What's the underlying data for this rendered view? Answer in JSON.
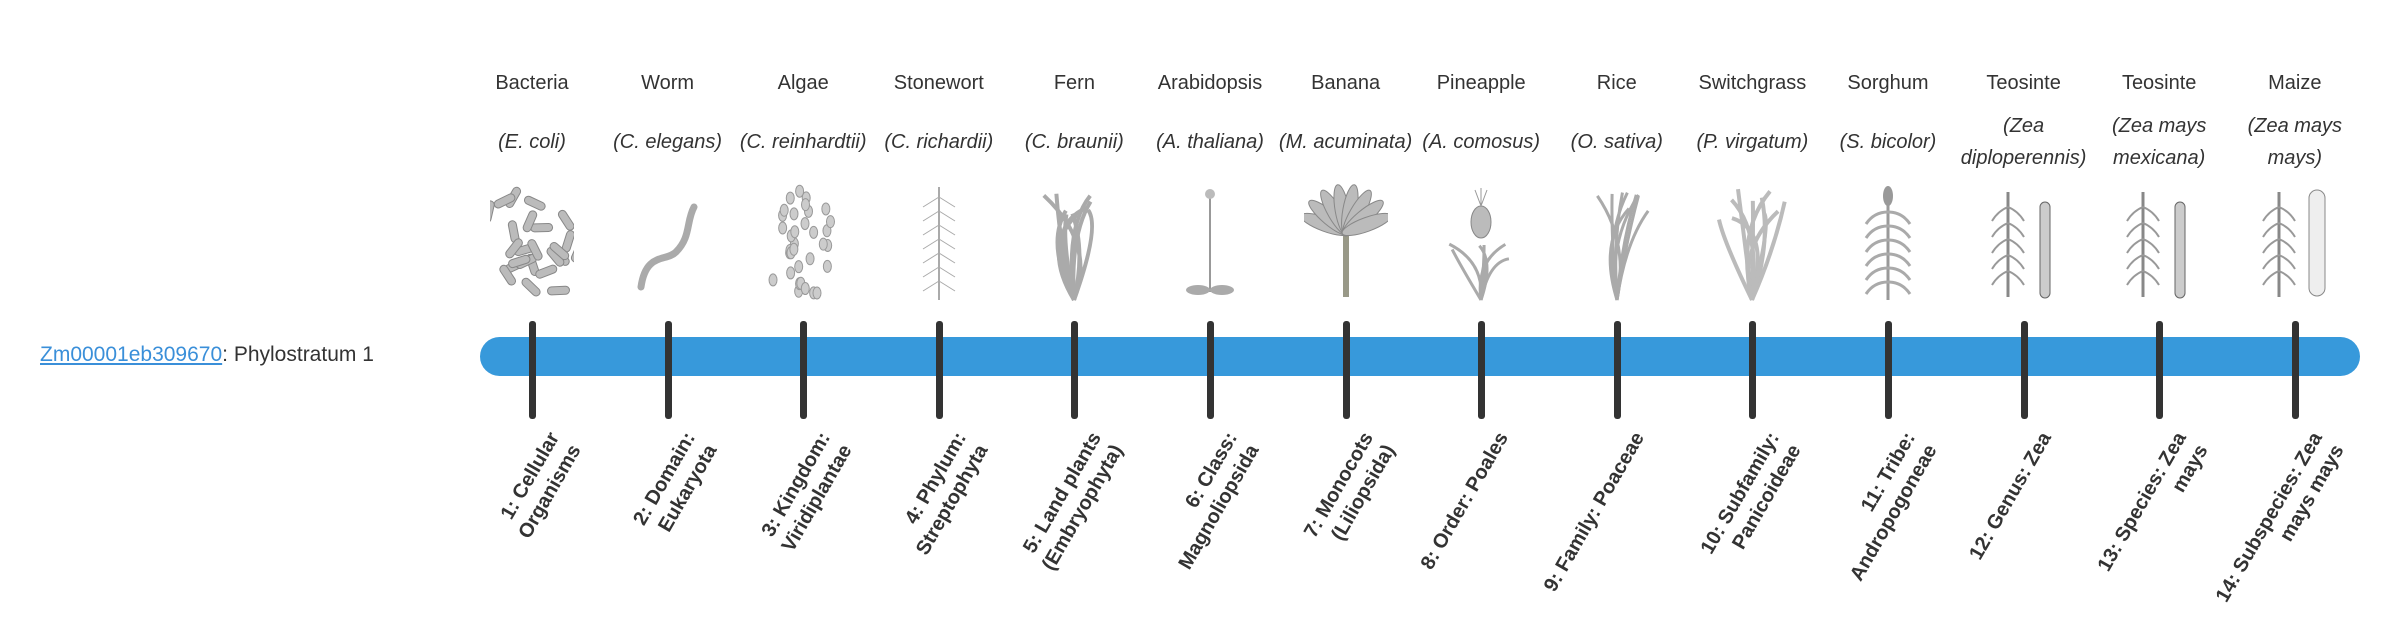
{
  "gene": {
    "id": "Zm00001eb309670",
    "suffix": ": Phylostratum 1"
  },
  "colors": {
    "bar": "#3799db",
    "tick": "#333333",
    "link": "#3a8fd9"
  },
  "organisms": [
    {
      "common": "Bacteria",
      "scientific": "(E. coli)",
      "icon": "bacteria"
    },
    {
      "common": "Worm",
      "scientific": "(C. elegans)",
      "icon": "worm"
    },
    {
      "common": "Algae",
      "scientific": "(C. reinhardtii)",
      "icon": "algae"
    },
    {
      "common": "Stonewort",
      "scientific": "(C. richardii)",
      "icon": "stonewort"
    },
    {
      "common": "Fern",
      "scientific": "(C. braunii)",
      "icon": "fern"
    },
    {
      "common": "Arabidopsis",
      "scientific": "(A. thaliana)",
      "icon": "arabidopsis"
    },
    {
      "common": "Banana",
      "scientific": "(M. acuminata)",
      "icon": "banana"
    },
    {
      "common": "Pineapple",
      "scientific": "(A. comosus)",
      "icon": "pineapple"
    },
    {
      "common": "Rice",
      "scientific": "(O. sativa)",
      "icon": "rice"
    },
    {
      "common": "Switchgrass",
      "scientific": "(P. virgatum)",
      "icon": "switchgrass"
    },
    {
      "common": "Sorghum",
      "scientific": "(S. bicolor)",
      "icon": "sorghum"
    },
    {
      "common": "Teosinte",
      "scientific": "(Zea diploperennis)",
      "icon": "teosinte"
    },
    {
      "common": "Teosinte",
      "scientific": "(Zea mays mexicana)",
      "icon": "teosinte"
    },
    {
      "common": "Maize",
      "scientific": "(Zea mays mays)",
      "icon": "maize"
    }
  ],
  "ranks": [
    "1: Cellular Organisms",
    "2: Domain: Eukaryota",
    "3: Kingdom: Viridiplantae",
    "4: Phylum: Streptophyta",
    "5: Land plants (Embryophyta)",
    "6: Class: Magnoliopsida",
    "7: Monocots (Liliopsida)",
    "8: Order: Poales",
    "9: Family: Poaceae",
    "10: Subfamily: Panicoideae",
    "11: Tribe: Andropogoneae",
    "12: Genus: Zea",
    "13: Species: Zea mays",
    "14: Subspecies: Zea mays mays"
  ]
}
